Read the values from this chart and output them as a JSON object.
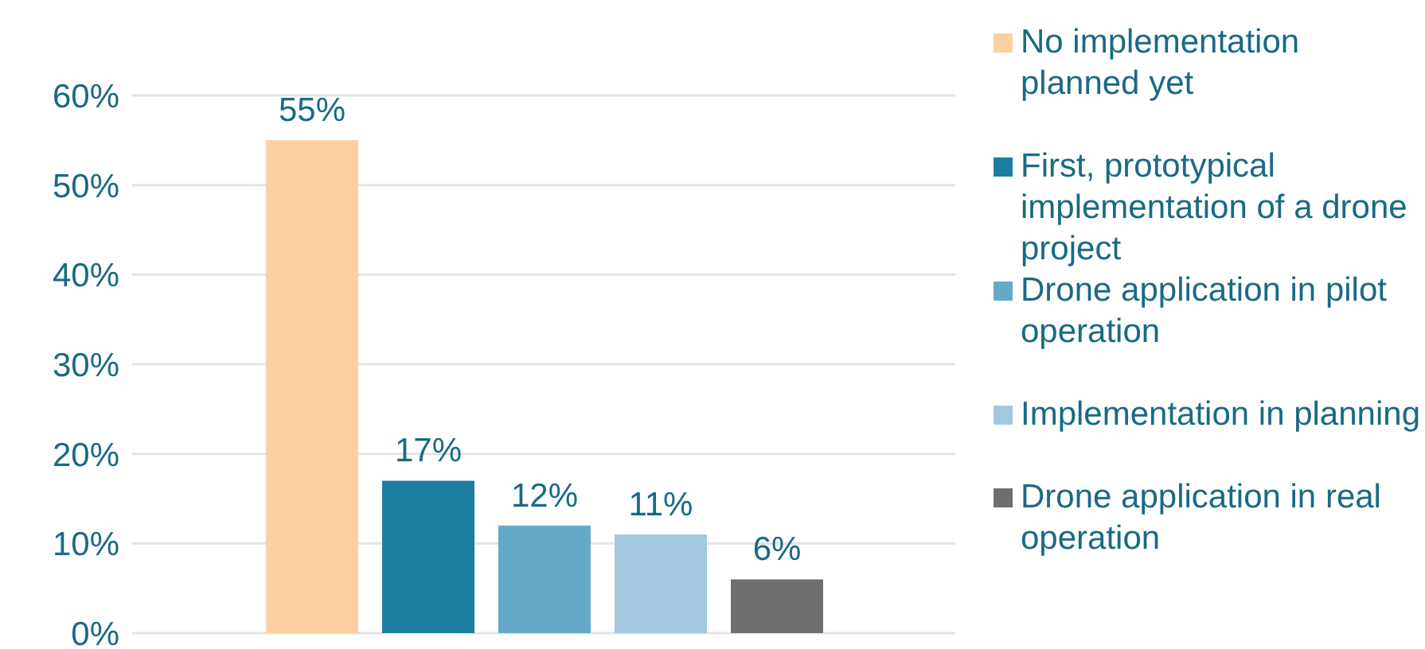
{
  "chart_data": {
    "type": "bar",
    "categories": [
      null
    ],
    "series": [
      {
        "name": "No implementation planned yet",
        "color": "#fdd0a2",
        "values": [
          55
        ],
        "value_labels": [
          "55%"
        ]
      },
      {
        "name": "First, prototypical implementation of a drone project",
        "color": "#1b7da0",
        "values": [
          17
        ],
        "value_labels": [
          "17%"
        ]
      },
      {
        "name": "Drone application in pilot operation",
        "color": "#65a9c9",
        "values": [
          12
        ],
        "value_labels": [
          "12%"
        ]
      },
      {
        "name": "Implementation in planning",
        "color": "#a2c8de",
        "values": [
          11
        ],
        "value_labels": [
          "11%"
        ]
      },
      {
        "name": "Drone application in real operation",
        "color": "#6f6f6f",
        "values": [
          6
        ],
        "value_labels": [
          "6%"
        ]
      }
    ],
    "ylim": [
      0,
      60
    ],
    "yticks": [
      {
        "value": 0,
        "label": "0%"
      },
      {
        "value": 10,
        "label": "10%"
      },
      {
        "value": 20,
        "label": "20%"
      },
      {
        "value": 30,
        "label": "30%"
      },
      {
        "value": 40,
        "label": "40%"
      },
      {
        "value": 50,
        "label": "50%"
      },
      {
        "value": 60,
        "label": "60%"
      }
    ],
    "grid": "y",
    "legend": "right"
  }
}
